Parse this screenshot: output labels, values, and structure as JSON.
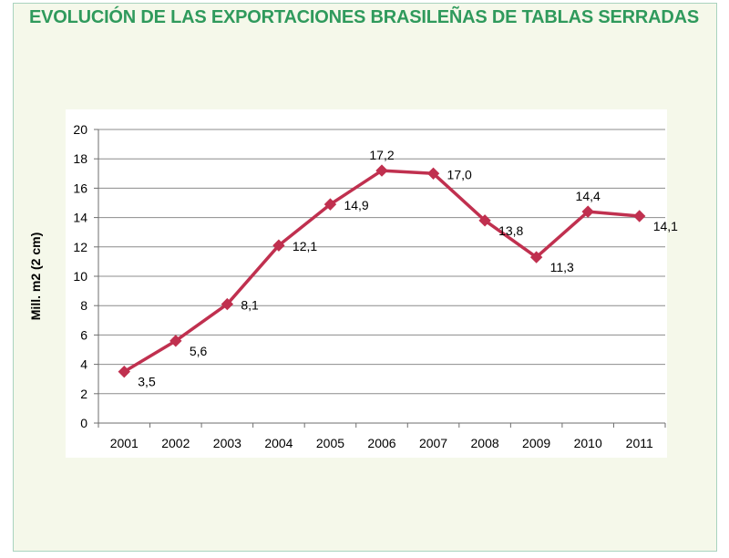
{
  "title": "EVOLUCIÓN DE LAS EXPORTACIONES BRASILEÑAS DE TABLAS SERRADAS",
  "chart_data": {
    "type": "line",
    "categories": [
      "2001",
      "2002",
      "2003",
      "2004",
      "2005",
      "2006",
      "2007",
      "2008",
      "2009",
      "2010",
      "2011"
    ],
    "series": [
      {
        "values": [
          3.5,
          5.6,
          8.1,
          12.1,
          14.9,
          17.2,
          17.0,
          13.8,
          11.3,
          14.4,
          14.1
        ],
        "labels": [
          "3,5",
          "5,6",
          "8,1",
          "12,1",
          "14,9",
          "17,2",
          "17,0",
          "13,8",
          "11,3",
          "14,4",
          "14,1"
        ],
        "color": "#c0304f",
        "marker": "diamond"
      }
    ],
    "ylabel": "Mill. m2 (2 cm)",
    "xlabel": "",
    "ylim": [
      0,
      20
    ],
    "yticks": [
      0,
      2,
      4,
      6,
      8,
      10,
      12,
      14,
      16,
      18,
      20
    ],
    "grid": true,
    "legend": "none"
  },
  "colors": {
    "title": "#2f9a5c",
    "background": "#f5f8ea",
    "border": "#a9d3bf",
    "gridline": "#8c8c8c",
    "line": "#c0304f"
  }
}
